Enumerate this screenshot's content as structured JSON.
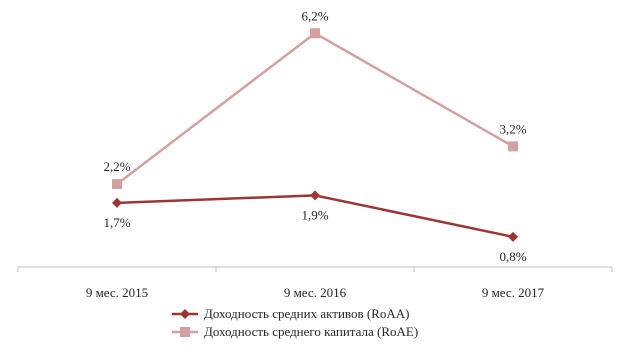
{
  "chart_data": {
    "type": "line",
    "categories": [
      "9 мес. 2015",
      "9 мес. 2016",
      "9 мес. 2017"
    ],
    "ylim": [
      0,
      7
    ],
    "grid": false,
    "legend_position": "bottom",
    "series": [
      {
        "name": "Доходность средних активов (RoAA)",
        "values": [
          1.7,
          1.9,
          0.8
        ],
        "labels": [
          "1,7%",
          "1,9%",
          "0,8%"
        ],
        "color": "#9e3535",
        "marker": "diamond"
      },
      {
        "name": "Доходность среднего капитала (RoAE)",
        "values": [
          2.2,
          6.2,
          3.2
        ],
        "labels": [
          "2,2%",
          "6,2%",
          "3,2%"
        ],
        "color": "#d4a0a0",
        "marker": "square"
      }
    ]
  }
}
